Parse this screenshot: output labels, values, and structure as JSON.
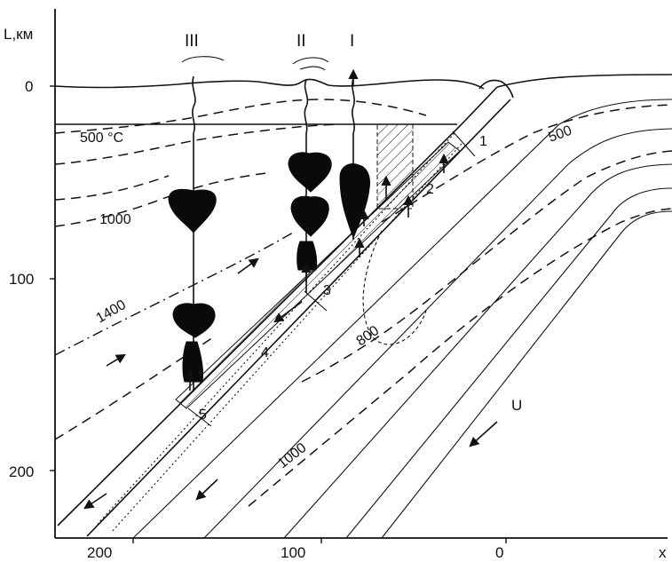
{
  "axes": {
    "y_label": "L,км",
    "x_label": "x",
    "y_ticks": [
      "0",
      "100",
      "200"
    ],
    "x_ticks": [
      "200",
      "100",
      "0"
    ]
  },
  "columns": [
    "III",
    "II",
    "I"
  ],
  "isotherms": {
    "iso_500c": "500 °C",
    "iso_1000_left": "1000",
    "iso_1400": "1400",
    "iso_500_right": "500",
    "iso_800": "800",
    "iso_1000_right": "1000"
  },
  "zones": [
    "1",
    "2",
    "3",
    "4",
    "5"
  ],
  "velocity_label": "U"
}
